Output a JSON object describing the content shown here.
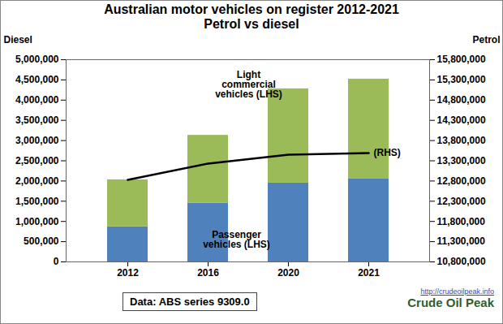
{
  "chart_data": {
    "type": "bar",
    "title": "Australian motor vehicles on register 2012-2021",
    "subtitle": "Petrol vs diesel",
    "ylabel": "Diesel",
    "y2label": "Petrol",
    "categories": [
      "2012",
      "2016",
      "2020",
      "2021"
    ],
    "stacked": true,
    "grid": false,
    "series": [
      {
        "name": "Passenger vehicles (LHS)",
        "type": "bar",
        "color": "#4f81bd",
        "values": [
          870000,
          1450000,
          1950000,
          2050000
        ]
      },
      {
        "name": "Light commercial vehicles (LHS)",
        "type": "bar",
        "color": "#9bbb59",
        "values": [
          1160000,
          1680000,
          2330000,
          2470000
        ]
      },
      {
        "name": "(RHS)",
        "type": "line",
        "axis": "y2",
        "color": "#000000",
        "values": [
          12830000,
          13230000,
          13450000,
          13490000
        ]
      }
    ],
    "ylim": [
      0,
      5000000
    ],
    "yticks": [
      0,
      {
        "value": 500000,
        "label": "500,000"
      },
      {
        "value": 1000000,
        "label": "1,000,000"
      },
      {
        "value": 1500000,
        "label": "1,500,000"
      },
      {
        "value": 2000000,
        "label": "2,000,000"
      },
      {
        "value": 2500000,
        "label": "2,500,000"
      },
      {
        "value": 3000000,
        "label": "3,000,000"
      },
      {
        "value": 3500000,
        "label": "3,500,000"
      },
      {
        "value": 4000000,
        "label": "4,000,000"
      },
      {
        "value": 4500000,
        "label": "4,500,000"
      },
      {
        "value": 5000000,
        "label": "5,000,000"
      }
    ],
    "y2lim": [
      10800000,
      15800000
    ],
    "y2ticks": [
      {
        "value": 10800000,
        "label": "10,800,000"
      },
      {
        "value": 11300000,
        "label": "11,300,000"
      },
      {
        "value": 11800000,
        "label": "11,800,000"
      },
      {
        "value": 12300000,
        "label": "12,300,000"
      },
      {
        "value": 12800000,
        "label": "12,800,000"
      },
      {
        "value": 13300000,
        "label": "13,300,000"
      },
      {
        "value": 13800000,
        "label": "13,800,000"
      },
      {
        "value": 14300000,
        "label": "14,300,000"
      },
      {
        "value": 14800000,
        "label": "14,800,000"
      },
      {
        "value": 15300000,
        "label": "15,300,000"
      },
      {
        "value": 15800000,
        "label": "15,800,000"
      }
    ],
    "caption": "Data: ABS series 9309.0",
    "credits": [
      "http://crudeoilpeak.info",
      "Crude Oil Peak"
    ]
  }
}
